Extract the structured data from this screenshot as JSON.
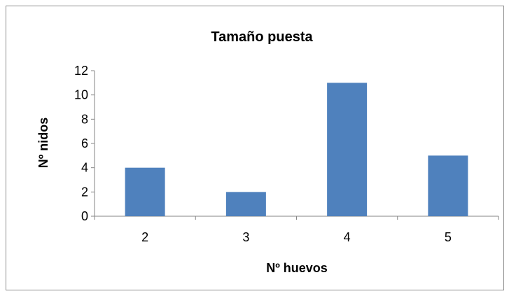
{
  "chart_data": {
    "type": "bar",
    "title": "Tamaño puesta",
    "xlabel": "Nº huevos",
    "ylabel": "Nº nidos",
    "categories": [
      "2",
      "3",
      "4",
      "5"
    ],
    "values": [
      4,
      2,
      11,
      5
    ],
    "ylim": [
      0,
      12
    ],
    "yticks": [
      "0",
      "2",
      "4",
      "6",
      "8",
      "10",
      "12"
    ],
    "grid": false,
    "legend": "none",
    "bar_color": "#4f81bd",
    "axis_color": "#868686"
  }
}
